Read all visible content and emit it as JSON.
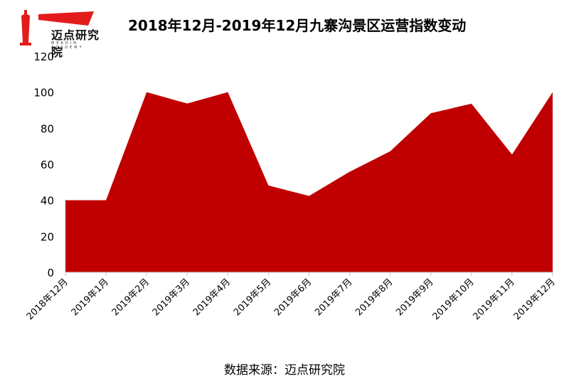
{
  "logo": {
    "name": "迈点研究院",
    "sub": "MEADIN ACADEMY"
  },
  "chart_data": {
    "type": "area",
    "title": "2018年12月-2019年12月九寨沟景区运营指数变动",
    "categories": [
      "2018年12月",
      "2019年1月",
      "2019年2月",
      "2019年3月",
      "2019年4月",
      "2019年5月",
      "2019年6月",
      "2019年7月",
      "2019年8月",
      "2019年9月",
      "2019年10月",
      "2019年11月",
      "2019年12月"
    ],
    "values": [
      40,
      40,
      100,
      93.7,
      100,
      48.2,
      42.4,
      55.8,
      67.2,
      88.3,
      93.6,
      65.4,
      100
    ],
    "ylim": [
      0,
      120
    ],
    "yticks": [
      0,
      20,
      40,
      60,
      80,
      100,
      120
    ],
    "grid": false,
    "color": "#C00000",
    "xlabel": "",
    "ylabel": ""
  },
  "source": "数据来源：迈点研究院"
}
